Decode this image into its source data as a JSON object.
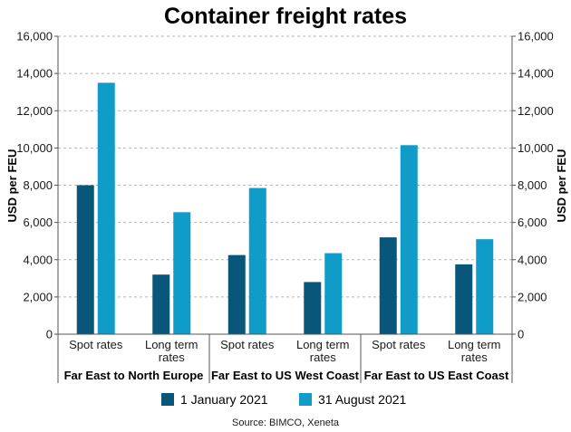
{
  "chart_data": {
    "type": "bar",
    "title": "Container freight rates",
    "ylabel_left": "USD per FEU",
    "ylabel_right": "USD per FEU",
    "ylim": [
      0,
      16000
    ],
    "yticks": [
      "0",
      "2,000",
      "4,000",
      "6,000",
      "8,000",
      "10,000",
      "12,000",
      "14,000",
      "16,000"
    ],
    "grid": true,
    "categories": [
      "Spot rates",
      "Long term rates",
      "Spot rates",
      "Long term rates",
      "Spot rates",
      "Long term rates"
    ],
    "category_lines": [
      [
        "Spot rates"
      ],
      [
        "Long term",
        "rates"
      ],
      [
        "Spot rates"
      ],
      [
        "Long term",
        "rates"
      ],
      [
        "Spot rates"
      ],
      [
        "Long term",
        "rates"
      ]
    ],
    "groups": [
      "Far East to North Europe",
      "Far East to US West Coast",
      "Far East to US East Coast"
    ],
    "series": [
      {
        "name": "1 January 2021",
        "color": "#08577a",
        "values": [
          8000,
          3200,
          4250,
          2800,
          5200,
          3750
        ]
      },
      {
        "name": "31 August 2021",
        "color": "#0f9cc9",
        "values": [
          13500,
          6550,
          7850,
          4350,
          10150,
          5100
        ]
      }
    ],
    "legend_position": "bottom",
    "source": "Source: BIMCO, Xeneta"
  }
}
